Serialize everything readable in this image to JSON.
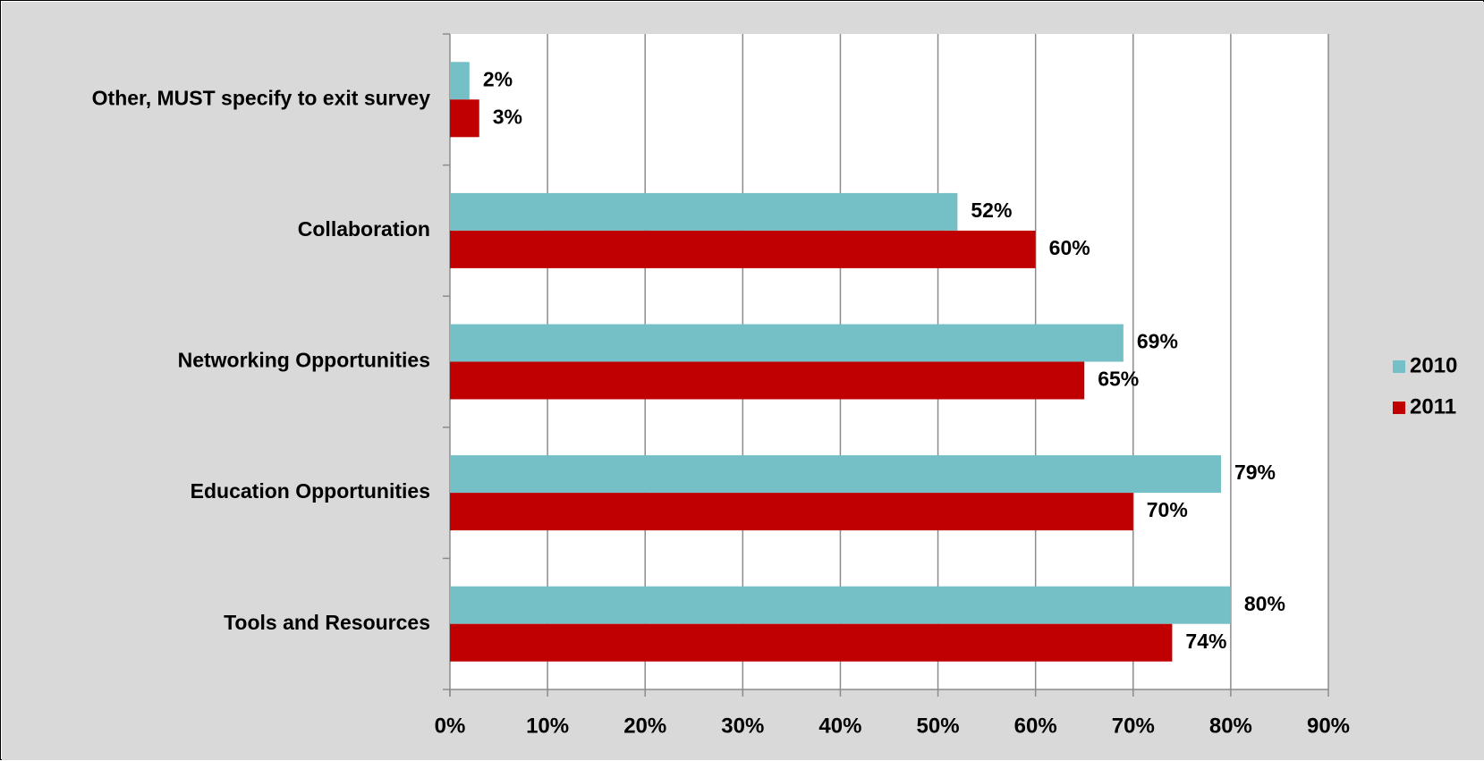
{
  "chart_data": {
    "type": "bar",
    "orientation": "horizontal",
    "categories": [
      "Other, MUST specify to exit survey",
      "Collaboration",
      "Networking Opportunities",
      "Education Opportunities",
      "Tools and Resources"
    ],
    "series": [
      {
        "name": "2010",
        "color": "#75c0c6",
        "values": [
          2,
          52,
          69,
          79,
          80
        ],
        "labels": [
          "2%",
          "52%",
          "69%",
          "79%",
          "80%"
        ]
      },
      {
        "name": "2011",
        "color": "#c00000",
        "values": [
          3,
          60,
          65,
          70,
          74
        ],
        "labels": [
          "3%",
          "60%",
          "65%",
          "70%",
          "74%"
        ]
      }
    ],
    "xlim": [
      0,
      90
    ],
    "xticks": [
      0,
      10,
      20,
      30,
      40,
      50,
      60,
      70,
      80,
      90
    ],
    "xtick_labels": [
      "0%",
      "10%",
      "20%",
      "30%",
      "40%",
      "50%",
      "60%",
      "70%",
      "80%",
      "90%"
    ],
    "grid": "vertical",
    "legend_position": "right",
    "background_color": "#d9d9d9",
    "plot_color": "#ffffff"
  }
}
